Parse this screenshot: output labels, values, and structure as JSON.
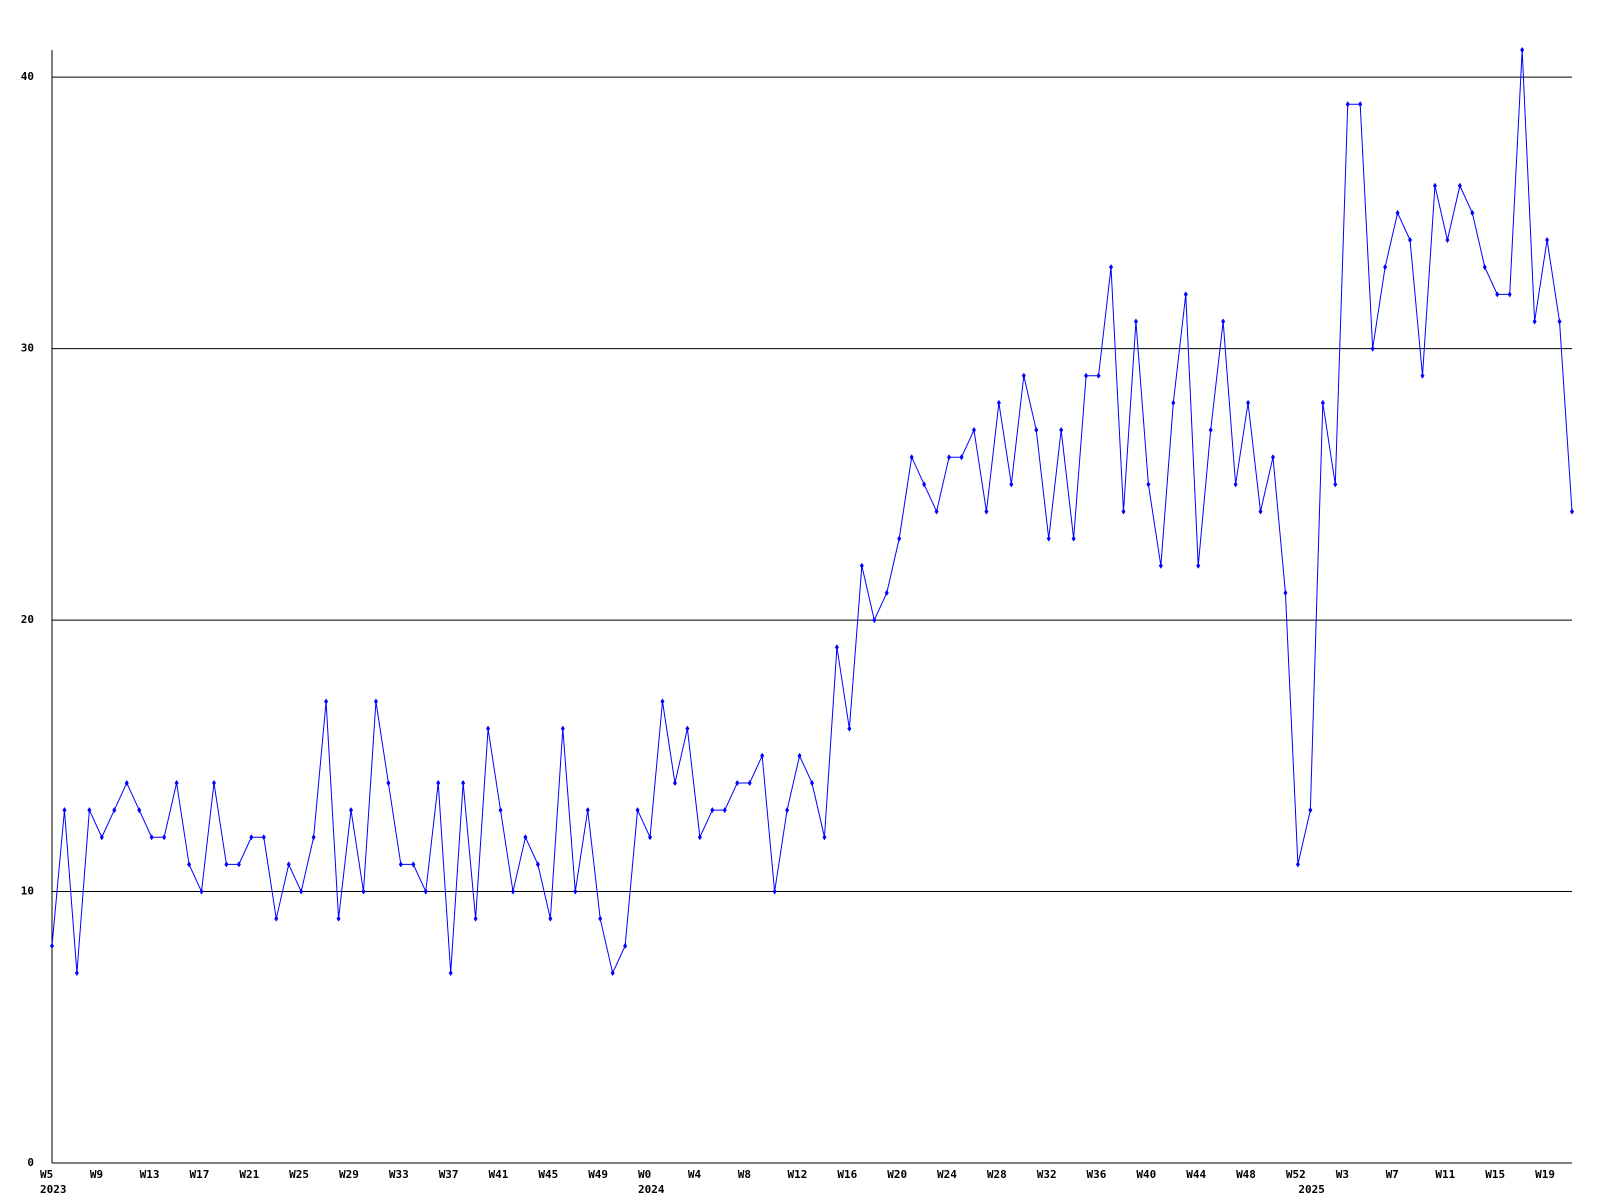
{
  "chart_data": {
    "type": "line",
    "categories": [
      "W5",
      null,
      null,
      null,
      "W9",
      null,
      null,
      null,
      "W13",
      null,
      null,
      null,
      "W17",
      null,
      null,
      null,
      "W21",
      null,
      null,
      null,
      "W25",
      null,
      null,
      null,
      "W29",
      null,
      null,
      null,
      "W33",
      null,
      null,
      null,
      "W37",
      null,
      null,
      null,
      "W41",
      null,
      null,
      null,
      "W45",
      null,
      null,
      null,
      "W49",
      null,
      null,
      null,
      "W0",
      null,
      null,
      null,
      "W4",
      null,
      null,
      null,
      "W8",
      null,
      null,
      null,
      "W12",
      null,
      null,
      null,
      "W16",
      null,
      null,
      null,
      "W20",
      null,
      null,
      null,
      "W24",
      null,
      null,
      null,
      "W28",
      null,
      null,
      null,
      "W32",
      null,
      null,
      null,
      "W36",
      null,
      null,
      null,
      "W40",
      null,
      null,
      null,
      "W44",
      null,
      null,
      null,
      "W48",
      null,
      null,
      null,
      "W52",
      null,
      null,
      null,
      "W3",
      null,
      null,
      null,
      "W7",
      null,
      null,
      null,
      "W11",
      null,
      null,
      null,
      "W15",
      null,
      null,
      null,
      "W19",
      null,
      null
    ],
    "category_years": [
      "2023",
      null,
      null,
      null,
      null,
      null,
      null,
      null,
      null,
      null,
      null,
      null,
      null,
      null,
      null,
      null,
      null,
      null,
      null,
      null,
      null,
      null,
      null,
      null,
      null,
      null,
      null,
      null,
      null,
      null,
      null,
      null,
      null,
      null,
      null,
      null,
      null,
      null,
      null,
      null,
      null,
      null,
      null,
      null,
      null,
      null,
      null,
      null,
      "2024",
      null,
      null,
      null,
      null,
      null,
      null,
      null,
      null,
      null,
      null,
      null,
      null,
      null,
      null,
      null,
      null,
      null,
      null,
      null,
      null,
      null,
      null,
      null,
      null,
      null,
      null,
      null,
      null,
      null,
      null,
      null,
      null,
      null,
      null,
      null,
      null,
      null,
      null,
      null,
      null,
      null,
      null,
      null,
      null,
      null,
      null,
      null,
      null,
      null,
      null,
      null,
      null,
      "2025",
      null,
      null,
      null,
      null,
      null,
      null,
      null,
      null,
      null,
      null,
      null,
      null,
      null,
      null,
      null,
      null,
      null,
      null,
      null,
      null,
      null
    ],
    "series": [
      {
        "color": "#0000ff",
        "values": [
          8,
          13,
          7,
          13,
          12,
          13,
          14,
          13,
          12,
          12,
          14,
          11,
          10,
          14,
          11,
          11,
          12,
          12,
          9,
          11,
          10,
          12,
          17,
          9,
          13,
          10,
          17,
          14,
          11,
          11,
          10,
          14,
          7,
          14,
          9,
          16,
          13,
          10,
          12,
          11,
          9,
          16,
          10,
          13,
          9,
          7,
          8,
          13,
          12,
          17,
          14,
          16,
          12,
          13,
          13,
          14,
          14,
          15,
          10,
          13,
          15,
          14,
          12,
          19,
          16,
          22,
          20,
          21,
          23,
          26,
          25,
          24,
          26,
          26,
          27,
          24,
          28,
          25,
          29,
          27,
          23,
          27,
          23,
          29,
          29,
          33,
          24,
          31,
          25,
          22,
          28,
          32,
          22,
          27,
          31,
          25,
          28,
          24,
          26,
          21,
          11,
          13,
          28,
          25,
          39,
          39,
          30,
          33,
          35,
          34,
          29,
          36,
          34,
          36,
          35,
          33,
          32,
          32,
          41,
          31,
          34,
          31,
          24
        ]
      }
    ],
    "ylim": [
      0,
      41
    ],
    "yticks": [
      0,
      10,
      20,
      30,
      40
    ],
    "grid": true
  }
}
